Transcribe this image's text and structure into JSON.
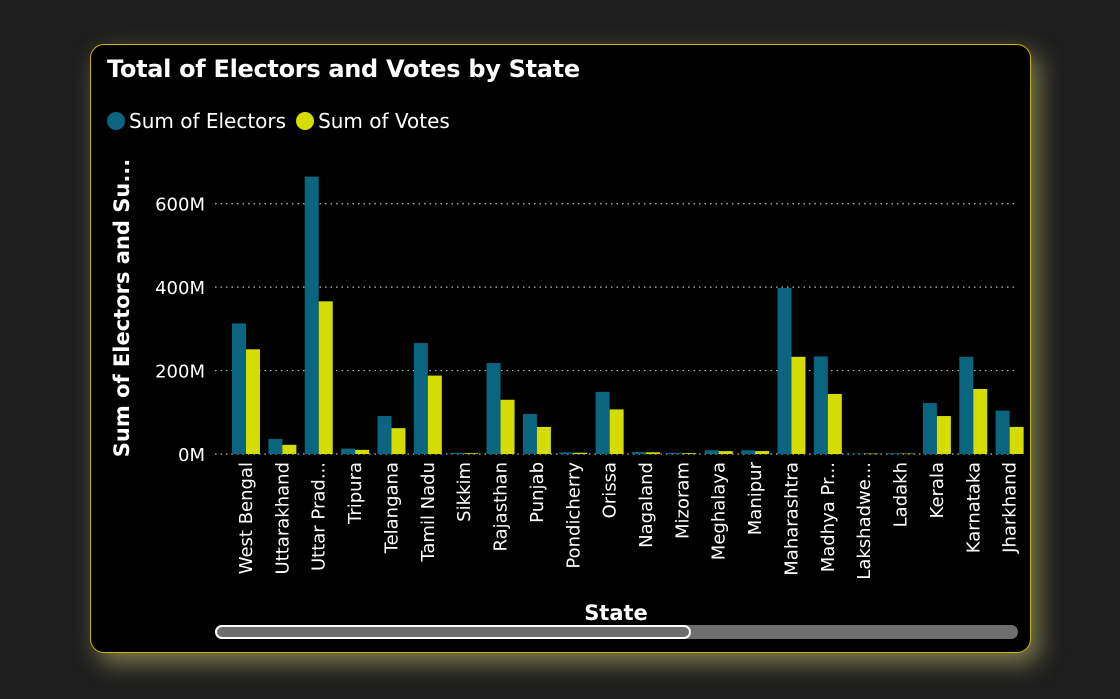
{
  "title": "Total of Electors and Votes by State",
  "legend": [
    {
      "label": "Sum of Electors",
      "color": "#0a6580"
    },
    {
      "label": "Sum of Votes",
      "color": "#d4dc00"
    }
  ],
  "chart_data": {
    "type": "bar",
    "title": "Total of Electors and Votes by State",
    "xlabel": "State",
    "ylabel": "Sum of Electors and Su...",
    "ylim": [
      0,
      700000000
    ],
    "yticks": [
      0,
      200000000,
      400000000,
      600000000
    ],
    "ytick_labels": [
      "0M",
      "200M",
      "400M",
      "600M"
    ],
    "grid": true,
    "legend_position": "top-left",
    "categories": [
      "West Bengal",
      "Uttarakhand",
      "Uttar Prad...",
      "Tripura",
      "Telangana",
      "Tamil Nadu",
      "Sikkim",
      "Rajasthan",
      "Punjab",
      "Pondicherry",
      "Orissa",
      "Nagaland",
      "Mizoram",
      "Meghalaya",
      "Manipur",
      "Maharashtra",
      "Madhya Pr...",
      "Lakshadwe...",
      "Ladakh",
      "Kerala",
      "Karnataka",
      "Jharkhand"
    ],
    "series": [
      {
        "name": "Sum of Electors",
        "color": "#0a6580",
        "values": [
          313000000,
          36000000,
          665000000,
          13000000,
          91000000,
          266000000,
          3000000,
          218000000,
          96000000,
          4000000,
          149000000,
          5000000,
          3000000,
          9000000,
          9000000,
          398000000,
          234000000,
          1000000,
          2000000,
          122000000,
          233000000,
          104000000
        ]
      },
      {
        "name": "Sum of Votes",
        "color": "#d4dc00",
        "values": [
          251000000,
          22000000,
          366000000,
          10000000,
          62000000,
          188000000,
          2000000,
          130000000,
          65000000,
          3000000,
          107000000,
          4000000,
          2000000,
          7000000,
          7000000,
          233000000,
          144000000,
          1000000,
          1000000,
          91000000,
          156000000,
          65000000
        ]
      }
    ]
  },
  "scrollbar": {
    "label": "horizontal-scroll"
  }
}
